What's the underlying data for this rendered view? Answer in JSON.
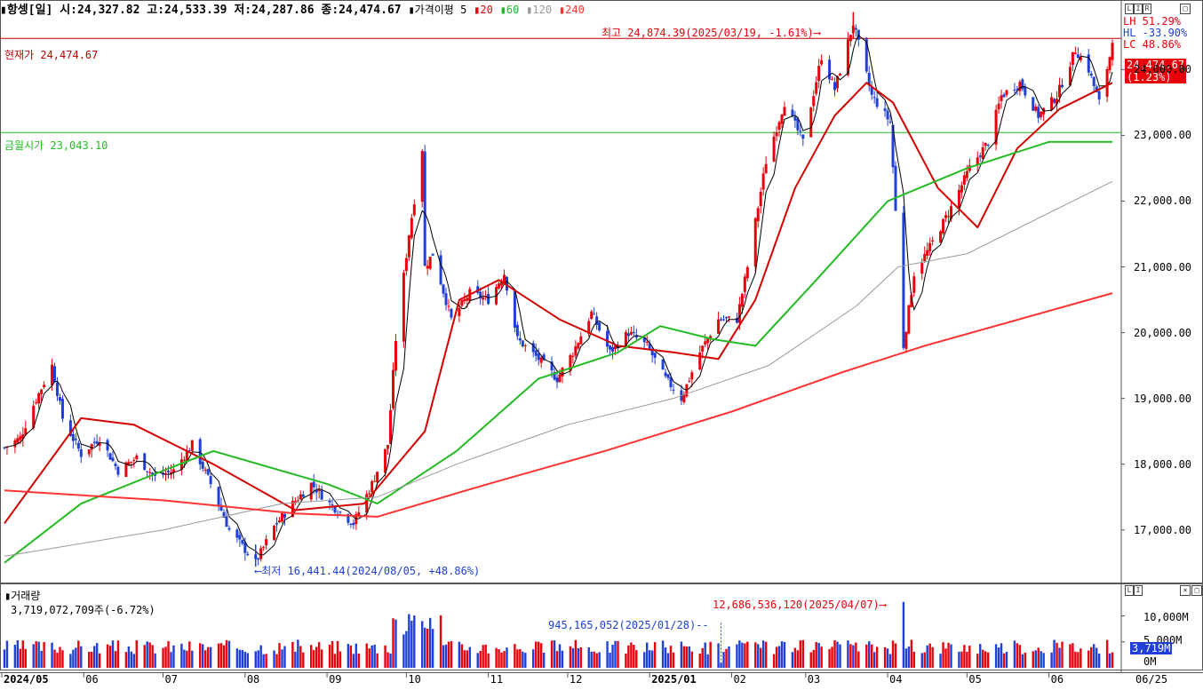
{
  "header": {
    "marker": "▮",
    "name": "항셍[일]",
    "open": "시:24,327.82",
    "high": "고:24,533.39",
    "low": "저:24,287.86",
    "close": "종:24,474.67",
    "indicator_label": "▮가격이평 5",
    "ma20_label": "20",
    "ma60_label": "60",
    "ma120_label": "120",
    "ma240_label": "240"
  },
  "legend": {
    "lh": "LH  51.29%",
    "hl": "HL -33.90%",
    "lc": "LC  48.86%"
  },
  "price_panel": {
    "current_label": "현재가 24,474.67",
    "current_tag": "24,474.67",
    "current_pct": "(1.23%)",
    "friday_label": "금월시가 23,043.10",
    "high_note": "최고 24,874.39(2025/03/19, -1.61%)⟶",
    "low_note": "⟵최저 16,441.44(2024/08/05, +48.86%)",
    "y_ticks": [
      "24,000.00",
      "23,000.00",
      "22,000.00",
      "21,000.00",
      "20,000.00",
      "19,000.00",
      "18,000.00",
      "17,000.00"
    ]
  },
  "volume_panel": {
    "title": "▮거래량",
    "value_line": "3,719,072,709주(-6.72%)",
    "max_note": "12,686,536,120(2025/04/07)⟶",
    "min_note": "945,165,052(2025/01/28)--",
    "y_ticks": [
      "10,000M",
      "5,000M",
      "0M"
    ],
    "current_tag": "3,719M"
  },
  "x_axis": {
    "labels": [
      "2024/05",
      "06",
      "07",
      "08",
      "09",
      "10",
      "11",
      "12",
      "2025/01",
      "02",
      "03",
      "04",
      "05",
      "06"
    ],
    "right_label": "06/25"
  },
  "colors": {
    "up": "#e8000b",
    "down": "#1f3fd6",
    "ma5": "#000000",
    "ma20": "#d40000",
    "ma60": "#22bb22",
    "ma120": "#999999",
    "ma240": "#ff3333",
    "current_line": "#c00000",
    "friday_line": "#22bb22"
  },
  "chart_data": {
    "type": "candlestick",
    "title": "항셍[일]",
    "ylim": [
      16200,
      24950
    ],
    "xlabel": "",
    "ylabel": "",
    "current_price": 24474.67,
    "month_open_price": 23043.1,
    "high": {
      "date": "2025/03/19",
      "value": 24874.39
    },
    "low": {
      "date": "2024/08/05",
      "value": 16441.44
    },
    "price_path": [
      {
        "x": "2024/05/02",
        "y": 18250
      },
      {
        "x": "2024/05/08",
        "y": 18400
      },
      {
        "x": "2024/05/13",
        "y": 18900
      },
      {
        "x": "2024/05/20",
        "y": 19500
      },
      {
        "x": "2024/05/24",
        "y": 18700
      },
      {
        "x": "2024/05/31",
        "y": 18150
      },
      {
        "x": "2024/06/07",
        "y": 18400
      },
      {
        "x": "2024/06/14",
        "y": 17900
      },
      {
        "x": "2024/06/21",
        "y": 18100
      },
      {
        "x": "2024/06/28",
        "y": 17800
      },
      {
        "x": "2024/07/05",
        "y": 17900
      },
      {
        "x": "2024/07/12",
        "y": 18300
      },
      {
        "x": "2024/07/19",
        "y": 17700
      },
      {
        "x": "2024/07/26",
        "y": 17000
      },
      {
        "x": "2024/08/05",
        "y": 16500
      },
      {
        "x": "2024/08/12",
        "y": 17050
      },
      {
        "x": "2024/08/19",
        "y": 17400
      },
      {
        "x": "2024/08/26",
        "y": 17700
      },
      {
        "x": "2024/09/02",
        "y": 17400
      },
      {
        "x": "2024/09/11",
        "y": 17100
      },
      {
        "x": "2024/09/18",
        "y": 17700
      },
      {
        "x": "2024/09/24",
        "y": 18300
      },
      {
        "x": "2024/09/27",
        "y": 19900
      },
      {
        "x": "2024/10/02",
        "y": 21500
      },
      {
        "x": "2024/10/07",
        "y": 22800
      },
      {
        "x": "2024/10/08",
        "y": 21000
      },
      {
        "x": "2024/10/11",
        "y": 21200
      },
      {
        "x": "2024/10/18",
        "y": 20200
      },
      {
        "x": "2024/10/25",
        "y": 20600
      },
      {
        "x": "2024/11/01",
        "y": 20500
      },
      {
        "x": "2024/11/07",
        "y": 20900
      },
      {
        "x": "2024/11/12",
        "y": 19900
      },
      {
        "x": "2024/11/20",
        "y": 19600
      },
      {
        "x": "2024/11/27",
        "y": 19300
      },
      {
        "x": "2024/12/03",
        "y": 19700
      },
      {
        "x": "2024/12/10",
        "y": 20300
      },
      {
        "x": "2024/12/17",
        "y": 19700
      },
      {
        "x": "2024/12/24",
        "y": 20000
      },
      {
        "x": "2024/12/31",
        "y": 19800
      },
      {
        "x": "2025/01/07",
        "y": 19300
      },
      {
        "x": "2025/01/13",
        "y": 19000
      },
      {
        "x": "2025/01/20",
        "y": 19700
      },
      {
        "x": "2025/01/27",
        "y": 20200
      },
      {
        "x": "2025/02/03",
        "y": 20200
      },
      {
        "x": "2025/02/07",
        "y": 21000
      },
      {
        "x": "2025/02/14",
        "y": 22600
      },
      {
        "x": "2025/02/21",
        "y": 23500
      },
      {
        "x": "2025/02/28",
        "y": 22900
      },
      {
        "x": "2025/03/07",
        "y": 24200
      },
      {
        "x": "2025/03/12",
        "y": 23700
      },
      {
        "x": "2025/03/19",
        "y": 24700
      },
      {
        "x": "2025/03/26",
        "y": 23600
      },
      {
        "x": "2025/04/02",
        "y": 23200
      },
      {
        "x": "2025/04/07",
        "y": 19800
      },
      {
        "x": "2025/04/11",
        "y": 20900
      },
      {
        "x": "2025/04/17",
        "y": 21300
      },
      {
        "x": "2025/04/25",
        "y": 21900
      },
      {
        "x": "2025/05/02",
        "y": 22500
      },
      {
        "x": "2025/05/09",
        "y": 22900
      },
      {
        "x": "2025/05/14",
        "y": 23600
      },
      {
        "x": "2025/05/21",
        "y": 23800
      },
      {
        "x": "2025/05/28",
        "y": 23300
      },
      {
        "x": "2025/06/04",
        "y": 23600
      },
      {
        "x": "2025/06/11",
        "y": 24300
      },
      {
        "x": "2025/06/16",
        "y": 24000
      },
      {
        "x": "2025/06/20",
        "y": 23500
      },
      {
        "x": "2025/06/24",
        "y": 24200
      },
      {
        "x": "2025/06/25",
        "y": 24474.67
      }
    ],
    "ma_series": [
      {
        "name": "20",
        "values": [
          {
            "x": "2024/05/02",
            "y": 17100
          },
          {
            "x": "2024/05/31",
            "y": 18700
          },
          {
            "x": "2024/06/20",
            "y": 18600
          },
          {
            "x": "2024/07/20",
            "y": 18000
          },
          {
            "x": "2024/08/20",
            "y": 17300
          },
          {
            "x": "2024/09/15",
            "y": 17400
          },
          {
            "x": "2024/10/08",
            "y": 18500
          },
          {
            "x": "2024/10/21",
            "y": 20500
          },
          {
            "x": "2024/11/05",
            "y": 20800
          },
          {
            "x": "2024/11/28",
            "y": 20200
          },
          {
            "x": "2024/12/20",
            "y": 19800
          },
          {
            "x": "2025/01/10",
            "y": 19700
          },
          {
            "x": "2025/01/27",
            "y": 19600
          },
          {
            "x": "2025/02/10",
            "y": 20500
          },
          {
            "x": "2025/02/25",
            "y": 22200
          },
          {
            "x": "2025/03/12",
            "y": 23300
          },
          {
            "x": "2025/03/24",
            "y": 23800
          },
          {
            "x": "2025/04/03",
            "y": 23500
          },
          {
            "x": "2025/04/20",
            "y": 22200
          },
          {
            "x": "2025/05/05",
            "y": 21600
          },
          {
            "x": "2025/05/20",
            "y": 22800
          },
          {
            "x": "2025/06/05",
            "y": 23400
          },
          {
            "x": "2025/06/25",
            "y": 23800
          }
        ]
      },
      {
        "name": "60",
        "values": [
          {
            "x": "2024/05/02",
            "y": 16500
          },
          {
            "x": "2024/05/31",
            "y": 17400
          },
          {
            "x": "2024/07/01",
            "y": 17900
          },
          {
            "x": "2024/07/20",
            "y": 18200
          },
          {
            "x": "2024/09/01",
            "y": 17700
          },
          {
            "x": "2024/09/20",
            "y": 17400
          },
          {
            "x": "2024/10/20",
            "y": 18200
          },
          {
            "x": "2024/11/20",
            "y": 19300
          },
          {
            "x": "2024/12/20",
            "y": 19700
          },
          {
            "x": "2025/01/05",
            "y": 20100
          },
          {
            "x": "2025/01/25",
            "y": 19900
          },
          {
            "x": "2025/02/10",
            "y": 19800
          },
          {
            "x": "2025/03/05",
            "y": 20800
          },
          {
            "x": "2025/04/01",
            "y": 22000
          },
          {
            "x": "2025/05/01",
            "y": 22500
          },
          {
            "x": "2025/06/01",
            "y": 22900
          },
          {
            "x": "2025/06/25",
            "y": 22900
          }
        ]
      },
      {
        "name": "120",
        "values": [
          {
            "x": "2024/05/02",
            "y": 16600
          },
          {
            "x": "2024/07/01",
            "y": 17000
          },
          {
            "x": "2024/08/15",
            "y": 17400
          },
          {
            "x": "2024/09/20",
            "y": 17500
          },
          {
            "x": "2024/10/20",
            "y": 18000
          },
          {
            "x": "2024/12/01",
            "y": 18600
          },
          {
            "x": "2025/01/10",
            "y": 19000
          },
          {
            "x": "2025/02/15",
            "y": 19500
          },
          {
            "x": "2025/03/20",
            "y": 20400
          },
          {
            "x": "2025/04/05",
            "y": 21000
          },
          {
            "x": "2025/05/01",
            "y": 21200
          },
          {
            "x": "2025/06/25",
            "y": 22300
          }
        ]
      },
      {
        "name": "240",
        "values": [
          {
            "x": "2024/05/02",
            "y": 17600
          },
          {
            "x": "2024/07/01",
            "y": 17450
          },
          {
            "x": "2024/08/20",
            "y": 17250
          },
          {
            "x": "2024/09/20",
            "y": 17200
          },
          {
            "x": "2024/11/01",
            "y": 17700
          },
          {
            "x": "2024/12/15",
            "y": 18200
          },
          {
            "x": "2025/02/01",
            "y": 18800
          },
          {
            "x": "2025/03/15",
            "y": 19400
          },
          {
            "x": "2025/04/15",
            "y": 19800
          },
          {
            "x": "2025/06/25",
            "y": 20600
          }
        ]
      }
    ],
    "volume": {
      "ylim": [
        0,
        13000
      ],
      "unit": "M",
      "current": 3719,
      "max": {
        "date": "2025/04/07",
        "value": 12686.536
      },
      "min": {
        "date": "2025/01/28",
        "value": 945.165
      }
    }
  }
}
